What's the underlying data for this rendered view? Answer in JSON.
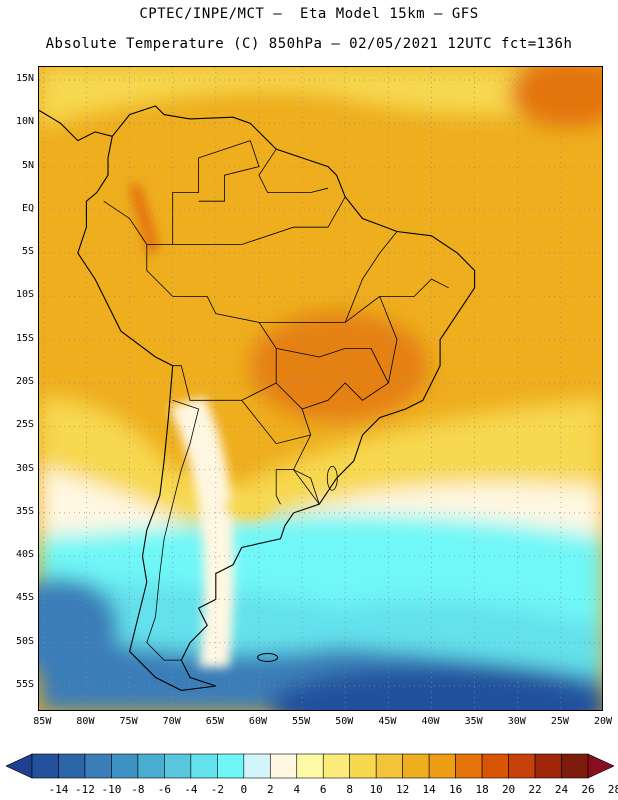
{
  "header": {
    "line1": "CPTEC/INPE/MCT –  Eta Model 15km – GFS",
    "line2": "Absolute Temperature (C) 850hPa – 02/05/2021 12UTC fct=136h"
  },
  "map": {
    "region": "South America",
    "lat_labels": [
      "15N",
      "10N",
      "5N",
      "EQ",
      "5S",
      "10S",
      "15S",
      "20S",
      "25S",
      "30S",
      "35S",
      "40S",
      "45S",
      "50S",
      "55S"
    ],
    "lon_labels": [
      "85W",
      "80W",
      "75W",
      "70W",
      "65W",
      "60W",
      "55W",
      "50W",
      "45W",
      "40W",
      "35W",
      "30W",
      "25W",
      "20W"
    ],
    "lat_range": [
      16.5,
      -58.0
    ],
    "lon_range": [
      -85.5,
      -20.0
    ]
  },
  "colorbar": {
    "labels": [
      "-14",
      "-12",
      "-10",
      "-8",
      "-6",
      "-4",
      "-2",
      "0",
      "2",
      "4",
      "6",
      "8",
      "10",
      "12",
      "14",
      "16",
      "18",
      "20",
      "22",
      "24",
      "26",
      "28"
    ],
    "colors": [
      "#1f3f8f",
      "#24519c",
      "#2c66a8",
      "#3a7db8",
      "#3f93c4",
      "#4aaed0",
      "#59c6de",
      "#63e1ec",
      "#6ff7f7",
      "#d2f5fb",
      "#fff7e2",
      "#fef9a6",
      "#fbeb7a",
      "#f7d84f",
      "#f2c43a",
      "#eeae1e",
      "#ee9e14",
      "#e4740b",
      "#d95506",
      "#c8400a",
      "#9f2608",
      "#7d1c0c",
      "#8a0e22"
    ]
  },
  "palette": {
    "ocean_cold_deep": "#24519c",
    "ocean_cold": "#3a7db8",
    "cyan": "#63e1ec",
    "light_cyan": "#6ff7f7",
    "pale": "#fff7e2",
    "yellow": "#f7d84f",
    "warm": "#eeae1e",
    "hot": "#e4740b",
    "coast": "#000000",
    "grid": "#8c8c8c"
  }
}
